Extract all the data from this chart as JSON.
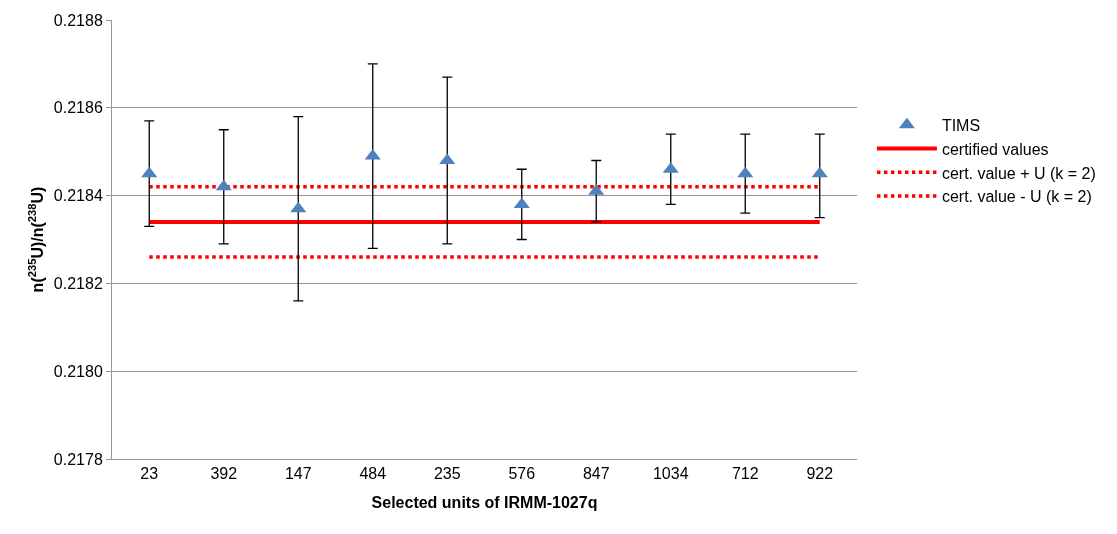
{
  "chart_data": {
    "type": "scatter",
    "xlabel": "Selected units of IRMM-1027q",
    "ylabel": "n($^{235}$U)/n($^{238}$U)",
    "categories": [
      "23",
      "392",
      "147",
      "484",
      "235",
      "576",
      "847",
      "1034",
      "712",
      "922"
    ],
    "series": [
      {
        "name": "TIMS",
        "color": "#4f81bd",
        "marker": "triangle",
        "values": [
          0.21845,
          0.21842,
          0.21837,
          0.21849,
          0.21848,
          0.21838,
          0.21841,
          0.21846,
          0.21845,
          0.21845
        ],
        "errors": [
          [
            0.21833,
            0.21857
          ],
          [
            0.21829,
            0.21855
          ],
          [
            0.21816,
            0.21858
          ],
          [
            0.21828,
            0.2187
          ],
          [
            0.21829,
            0.21867
          ],
          [
            0.2183,
            0.21846
          ],
          [
            0.21834,
            0.21848
          ],
          [
            0.21838,
            0.21854
          ],
          [
            0.21836,
            0.21854
          ],
          [
            0.21835,
            0.21854
          ]
        ]
      },
      {
        "name": "certified values",
        "type": "line",
        "color": "#ff0000",
        "line_style": "solid",
        "values": [
          0.21834,
          0.21834,
          0.21834,
          0.21834,
          0.21834,
          0.21834,
          0.21834,
          0.21834,
          0.21834,
          0.21834
        ]
      },
      {
        "name": "cert. value + U (k = 2)",
        "type": "line",
        "color": "#ff0000",
        "line_style": "dotted",
        "values": [
          0.21842,
          0.21842,
          0.21842,
          0.21842,
          0.21842,
          0.21842,
          0.21842,
          0.21842,
          0.21842,
          0.21842
        ]
      },
      {
        "name": "cert. value - U (k = 2)",
        "type": "line",
        "color": "#ff0000",
        "line_style": "dotted",
        "values": [
          0.21826,
          0.21826,
          0.21826,
          0.21826,
          0.21826,
          0.21826,
          0.21826,
          0.21826,
          0.21826,
          0.21826
        ]
      }
    ],
    "ylim": [
      0.2178,
      0.2188
    ],
    "yticks": [
      0.2178,
      {
        "value": 0.218,
        "label": "0.2180"
      },
      0.2182,
      0.2184,
      0.2186,
      0.2188
    ],
    "grid": "y",
    "legend": "right"
  }
}
